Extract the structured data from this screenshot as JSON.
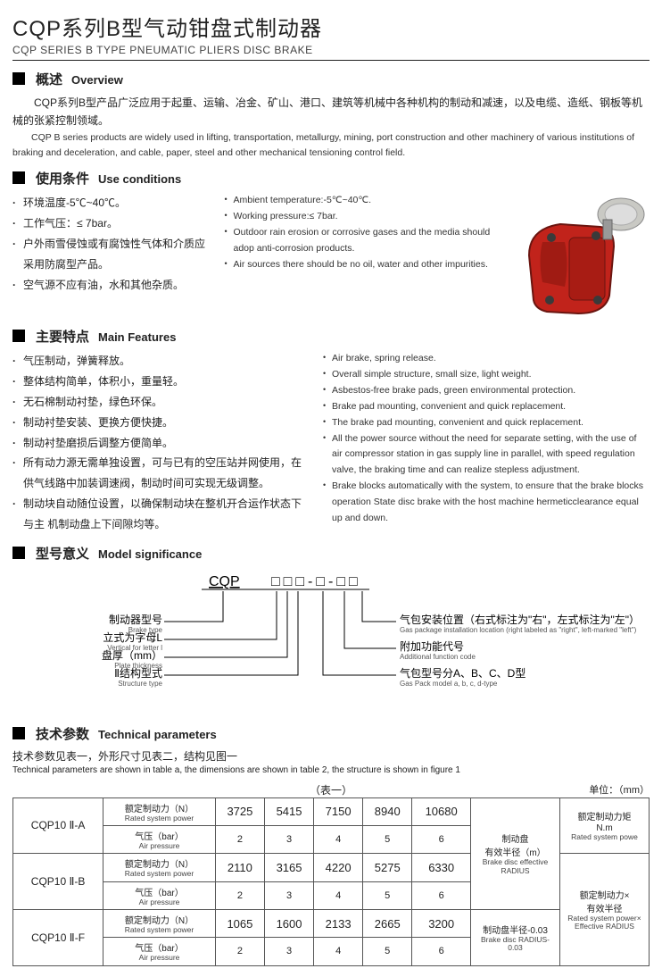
{
  "title": {
    "cn": "CQP系列B型气动钳盘式制动器",
    "en": "CQP SERIES B TYPE PNEUMATIC PLIERS DISC BRAKE"
  },
  "overview": {
    "head_cn": "概述",
    "head_en": "Overview",
    "para_cn": "CQP系列B型产品广泛应用于起重、运输、冶金、矿山、港口、建筑等机械中各种机构的制动和减速，以及电缆、造纸、钢板等机械的张紧控制领域。",
    "para_en": "CQP B series products are widely used in lifting, transportation, metallurgy, mining, port construction and other machinery of various institutions of braking and deceleration, and cable, paper, steel and other mechanical tensioning control field."
  },
  "use": {
    "head_cn": "使用条件",
    "head_en": "Use conditions",
    "cn": [
      "环境温度-5℃~40℃。",
      "工作气压：≤ 7bar。",
      "户外雨雪侵蚀或有腐蚀性气体和介质应采用防腐型产品。",
      "空气源不应有油，水和其他杂质。"
    ],
    "en": [
      "Ambient temperature:-5℃~40℃.",
      "Working pressure:≤ 7bar.",
      "Outdoor rain erosion or corrosive gases and the media should adop  anti-corrosion products.",
      "Air sources there should be no oil, water and other impurities."
    ]
  },
  "feat": {
    "head_cn": "主要特点",
    "head_en": "Main Features",
    "cn": [
      "气压制动，弹簧释放。",
      "整体结构简单，体积小，重量轻。",
      "无石棉制动衬垫，绿色环保。",
      "制动衬垫安装、更换方便快捷。",
      "制动衬垫磨损后调整方便简单。",
      "所有动力源无需单独设置，可与已有的空压站并网使用，在供气线路中加装调速阀，制动时间可实现无级调整。",
      "制动块自动随位设置，以确保制动块在整机开合运作状态下与主 机制动盘上下间隙均等。"
    ],
    "en": [
      "Air brake, spring release.",
      "Overall simple structure, small size, light weight.",
      "Asbestos-free brake pads, green environmental protection.",
      "Brake pad mounting, convenient and quick replacement.",
      "The brake pad mounting, convenient and quick replacement.",
      "All the power source without the need for separate setting, with the use of  air compressor station in gas supply line in parallel, with speed regulation  valve, the braking time and can realize stepless adjustment.",
      "Brake blocks automatically  with the system, to ensure that the brake blocks operation  State disc brake with the host machine hermeticclearance equal up and down."
    ]
  },
  "model": {
    "head_cn": "型号意义",
    "head_en": "Model  significance",
    "code_main": "CQP",
    "code_box": "□□□-□-□□",
    "left": [
      {
        "cn": "制动器型号",
        "en": "Brake type"
      },
      {
        "cn": "立式为字母L",
        "en": "Vertical for letter l"
      },
      {
        "cn": "盘厚（mm）",
        "en": "Plate thickness"
      },
      {
        "cn": "Ⅱ结构型式",
        "en": "Structure type"
      }
    ],
    "right": [
      {
        "cn": "气包安装位置（右式标注为\"右\"，左式标注为\"左\"）",
        "en": "Gas package installation location (right labeled as \"right\", left-marked \"left\")"
      },
      {
        "cn": "附加功能代号",
        "en": "Additional function code"
      },
      {
        "cn": "气包型号分A、B、C、D型",
        "en": "Gas Pack model a, b, c, d-type"
      }
    ]
  },
  "tech": {
    "head_cn": "技术参数",
    "head_en": "Technical parameters",
    "note_cn": "技术参数见表一，外形尺寸见表二，结构见图一",
    "note_en": "Technical parameters are shown in table a, the dimensions are shown in table 2, the structure is shown in figure 1",
    "caption": "（表一）",
    "unit": "单位：（mm）",
    "row_labels": {
      "power_cn": "额定制动力（N）",
      "power_en": "Rated system power",
      "press_cn": "气压（bar）",
      "press_en": "Air pressure"
    },
    "right_top": {
      "cn": "制动盘\n有效半径（m）",
      "en": "Brake disc effective RADIUS"
    },
    "right_top2": {
      "cn": "额定制动力矩\nN.m",
      "en": "Rated system powe"
    },
    "right_bot": {
      "cn": "制动盘半径-0.03",
      "en": "Brake disc RADIUS-0.03"
    },
    "right_bot2": {
      "cn": "额定制动力×\n有效半径",
      "en": "Rated system power×\nEffective RADIUS"
    },
    "rows": [
      {
        "model": "CQP10 Ⅱ-A",
        "power": [
          "3725",
          "5415",
          "7150",
          "8940",
          "10680"
        ],
        "press": [
          "2",
          "3",
          "4",
          "5",
          "6"
        ]
      },
      {
        "model": "CQP10 Ⅱ-B",
        "power": [
          "2110",
          "3165",
          "4220",
          "5275",
          "6330"
        ],
        "press": [
          "2",
          "3",
          "4",
          "5",
          "6"
        ]
      },
      {
        "model": "CQP10 Ⅱ-F",
        "power": [
          "1065",
          "1600",
          "2133",
          "2665",
          "3200"
        ],
        "press": [
          "2",
          "3",
          "4",
          "5",
          "6"
        ]
      }
    ]
  },
  "colors": {
    "brake_red": "#c1231b",
    "brake_dark": "#6a1510",
    "brake_grey": "#c9c9c4",
    "brake_bolt": "#3a3a3a"
  }
}
